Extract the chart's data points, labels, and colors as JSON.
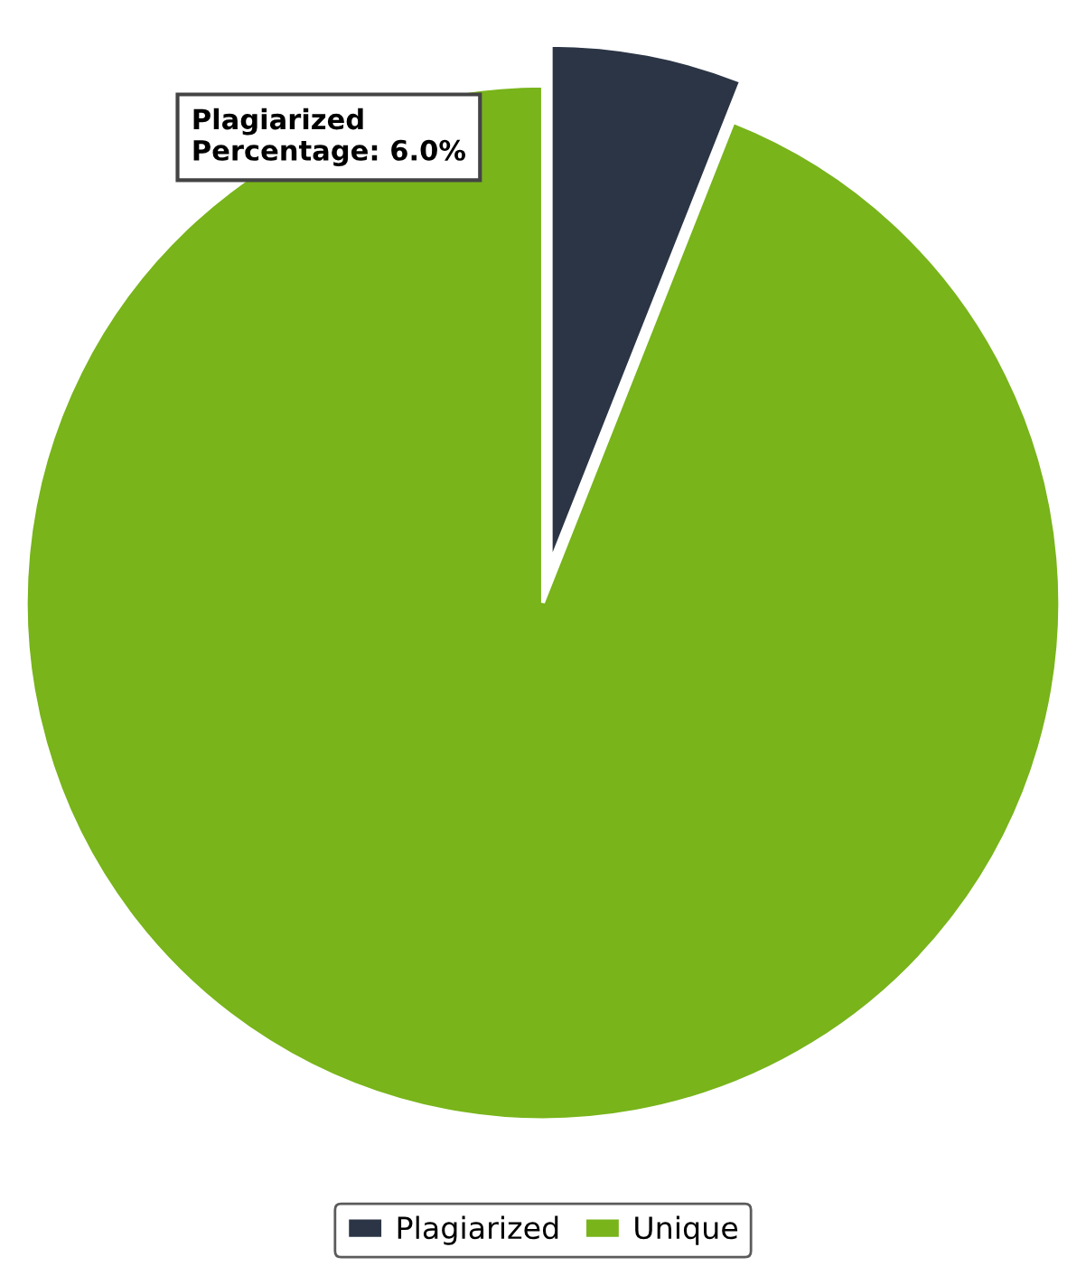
{
  "chart_data": {
    "type": "pie",
    "categories": [
      "Plagiarized",
      "Unique"
    ],
    "values": [
      6,
      94
    ],
    "colors": [
      "#2b3545",
      "#78b41a"
    ],
    "annotations": [
      "Plagiarized\nPercentage: 6.0%"
    ],
    "legend": "bottom"
  }
}
